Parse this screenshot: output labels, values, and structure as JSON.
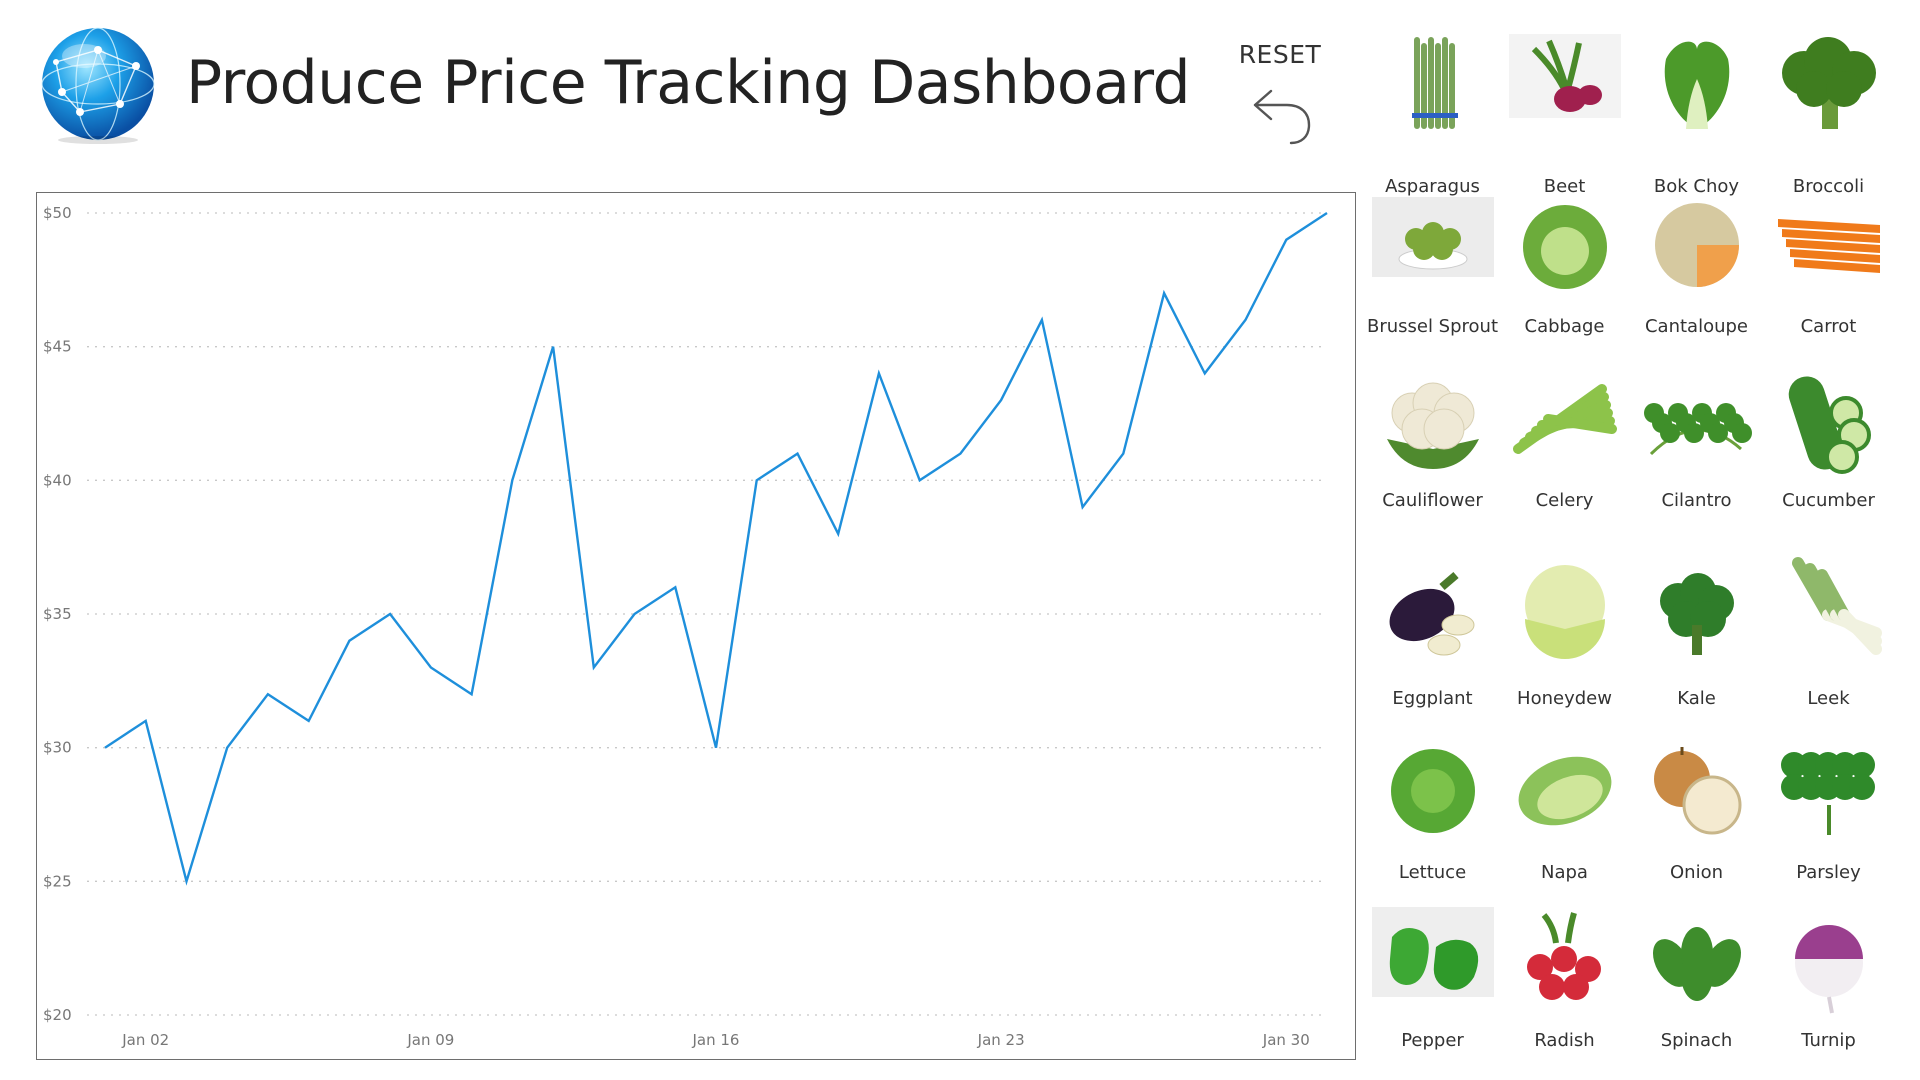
{
  "header": {
    "title": "Produce Price Tracking Dashboard",
    "reset_label": "RESET"
  },
  "chart_data": {
    "type": "line",
    "title": "",
    "xlabel": "",
    "ylabel": "",
    "ylim": [
      20,
      50
    ],
    "yticks": [
      "$20",
      "$25",
      "$30",
      "$35",
      "$40",
      "$45",
      "$50"
    ],
    "yticks_values": [
      20,
      25,
      30,
      35,
      40,
      45,
      50
    ],
    "xticks": [
      "Jan 02",
      "Jan 09",
      "Jan 16",
      "Jan 23",
      "Jan 30"
    ],
    "xticks_days": [
      2,
      9,
      16,
      23,
      30
    ],
    "grid": true,
    "color": "#1e8fdb",
    "series": [
      {
        "x": [
          1,
          2,
          3,
          4,
          5,
          6,
          7,
          8,
          9,
          10,
          11,
          12,
          13,
          14,
          15,
          16,
          17,
          18,
          19,
          20,
          21,
          22,
          23,
          24,
          25,
          26,
          27,
          28,
          29,
          30,
          31
        ],
        "values": [
          30,
          31,
          25,
          30,
          32,
          31,
          34,
          35,
          33,
          32,
          40,
          45,
          33,
          35,
          36,
          30,
          40,
          41,
          38,
          44,
          40,
          41,
          43,
          46,
          39,
          41,
          47,
          44,
          46,
          49,
          50
        ]
      }
    ]
  },
  "produce": [
    {
      "label": "Asparagus",
      "icon": "asparagus-icon",
      "color": "#7aa35a"
    },
    {
      "label": "Beet",
      "icon": "beet-icon",
      "color": "#a0204e"
    },
    {
      "label": "Bok Choy",
      "icon": "bok-choy-icon",
      "color": "#4c9a2a"
    },
    {
      "label": "Broccoli",
      "icon": "broccoli-icon",
      "color": "#3f7d1f"
    },
    {
      "label": "Brussel Sprout",
      "icon": "brussel-sprout-icon",
      "color": "#7ea83a"
    },
    {
      "label": "Cabbage",
      "icon": "cabbage-icon",
      "color": "#6cac3b"
    },
    {
      "label": "Cantaloupe",
      "icon": "cantaloupe-icon",
      "color": "#f0a04b"
    },
    {
      "label": "Carrot",
      "icon": "carrot-icon",
      "color": "#f07a1a"
    },
    {
      "label": "Cauliflower",
      "icon": "cauliflower-icon",
      "color": "#efe9d6"
    },
    {
      "label": "Celery",
      "icon": "celery-icon",
      "color": "#8dc34a"
    },
    {
      "label": "Cilantro",
      "icon": "cilantro-icon",
      "color": "#3f8f2a"
    },
    {
      "label": "Cucumber",
      "icon": "cucumber-icon",
      "color": "#3c8a2d"
    },
    {
      "label": "Eggplant",
      "icon": "eggplant-icon",
      "color": "#2b1a3a"
    },
    {
      "label": "Honeydew",
      "icon": "honeydew-icon",
      "color": "#c9e07a"
    },
    {
      "label": "Kale",
      "icon": "kale-icon",
      "color": "#2f7d2a"
    },
    {
      "label": "Leek",
      "icon": "leek-icon",
      "color": "#8fb86a"
    },
    {
      "label": "Lettuce",
      "icon": "lettuce-icon",
      "color": "#57a834"
    },
    {
      "label": "Napa",
      "icon": "napa-icon",
      "color": "#cfe69a"
    },
    {
      "label": "Onion",
      "icon": "onion-icon",
      "color": "#c98a45"
    },
    {
      "label": "Parsley",
      "icon": "parsley-icon",
      "color": "#2f8a2a"
    },
    {
      "label": "Pepper",
      "icon": "pepper-icon",
      "color": "#3da834"
    },
    {
      "label": "Radish",
      "icon": "radish-icon",
      "color": "#d42b3a"
    },
    {
      "label": "Spinach",
      "icon": "spinach-icon",
      "color": "#3e8d2c"
    },
    {
      "label": "Turnip",
      "icon": "turnip-icon",
      "color": "#9a3f8e"
    }
  ]
}
